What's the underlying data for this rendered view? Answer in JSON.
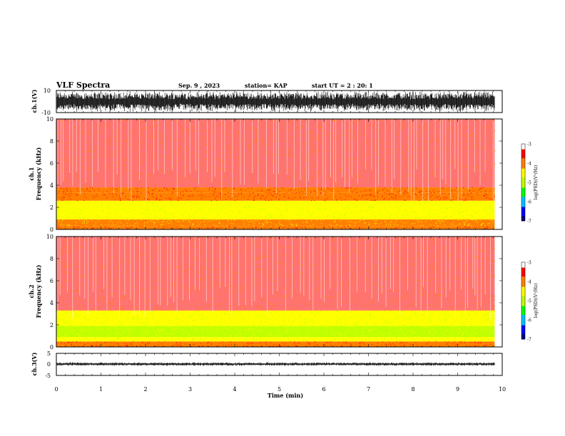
{
  "header": {
    "title": "VLF Spectra",
    "date": "Sep. 9 , 2023",
    "station": "station= KAP",
    "start": "start UT =  2 : 20: 1"
  },
  "chart_data": [
    {
      "type": "line",
      "id": "waveform-ch1",
      "ylabel": "ch.1(V)",
      "ylim": [
        -10,
        10
      ],
      "yticks": [
        "10",
        "-10"
      ],
      "series_color": "#000000",
      "description_of_trace": "dense noisy waveform filling most of the range"
    },
    {
      "type": "heatmap",
      "id": "spectrogram-ch1",
      "ylabel": "ch.1\nFrequency (kHz)",
      "ylim": [
        0,
        10
      ],
      "yticks": [
        "0",
        "2",
        "4",
        "6",
        "8",
        "10"
      ],
      "colorbar": {
        "label": "log(PSD)(V²/Hz)",
        "range": [
          -7,
          -3
        ],
        "ticks": [
          "-3",
          "-4",
          "-5",
          "-6",
          "-7"
        ],
        "colors": [
          "#000080",
          "#0000ff",
          "#00c0ff",
          "#00ff00",
          "#c0ff00",
          "#ffff00",
          "#ff8000",
          "#ff0000",
          "#ffffff"
        ]
      },
      "bands": [
        {
          "from_khz": 0,
          "to_khz": 0.3,
          "level": -3.8
        },
        {
          "from_khz": 0.3,
          "to_khz": 0.9,
          "level": -4.1
        },
        {
          "from_khz": 0.9,
          "to_khz": 2.6,
          "level": -4.6
        },
        {
          "from_khz": 2.6,
          "to_khz": 3.3,
          "level": -4.2
        },
        {
          "from_khz": 3.3,
          "to_khz": 3.8,
          "level": -3.9
        },
        {
          "from_khz": 3.8,
          "to_khz": 10,
          "level": -3.4
        }
      ]
    },
    {
      "type": "heatmap",
      "id": "spectrogram-ch2",
      "ylabel": "ch.2\nFrequency (kHz)",
      "ylim": [
        0,
        10
      ],
      "yticks": [
        "0",
        "2",
        "4",
        "6",
        "8",
        "10"
      ],
      "colorbar": {
        "label": "log(PSD)(V²/Hz)",
        "range": [
          -7,
          -3
        ],
        "ticks": [
          "-3",
          "-4",
          "-5",
          "-6",
          "-7"
        ],
        "colors": [
          "#000080",
          "#0000ff",
          "#00c0ff",
          "#00ff00",
          "#c0ff00",
          "#ffff00",
          "#ff8000",
          "#ff0000",
          "#ffffff"
        ]
      },
      "bands": [
        {
          "from_khz": 0,
          "to_khz": 0.5,
          "level": -4.0
        },
        {
          "from_khz": 0.5,
          "to_khz": 0.9,
          "level": -4.3
        },
        {
          "from_khz": 0.9,
          "to_khz": 1.9,
          "level": -5.0
        },
        {
          "from_khz": 1.9,
          "to_khz": 3.3,
          "level": -4.3
        },
        {
          "from_khz": 3.3,
          "to_khz": 10,
          "level": -3.5
        }
      ]
    },
    {
      "type": "line",
      "id": "waveform-ch3",
      "ylabel": "ch.3(V)",
      "ylim": [
        -5,
        5
      ],
      "yticks": [
        "5",
        "0",
        "-5"
      ],
      "series_color": "#000000",
      "description_of_trace": "narrow dense band slightly below zero"
    }
  ],
  "time_axis": {
    "label": "Time (min)",
    "ticks": [
      "0",
      "1",
      "2",
      "3",
      "4",
      "5",
      "6",
      "7",
      "8",
      "9",
      "10"
    ],
    "range": [
      0,
      10
    ],
    "data_end_min": 9.83
  }
}
